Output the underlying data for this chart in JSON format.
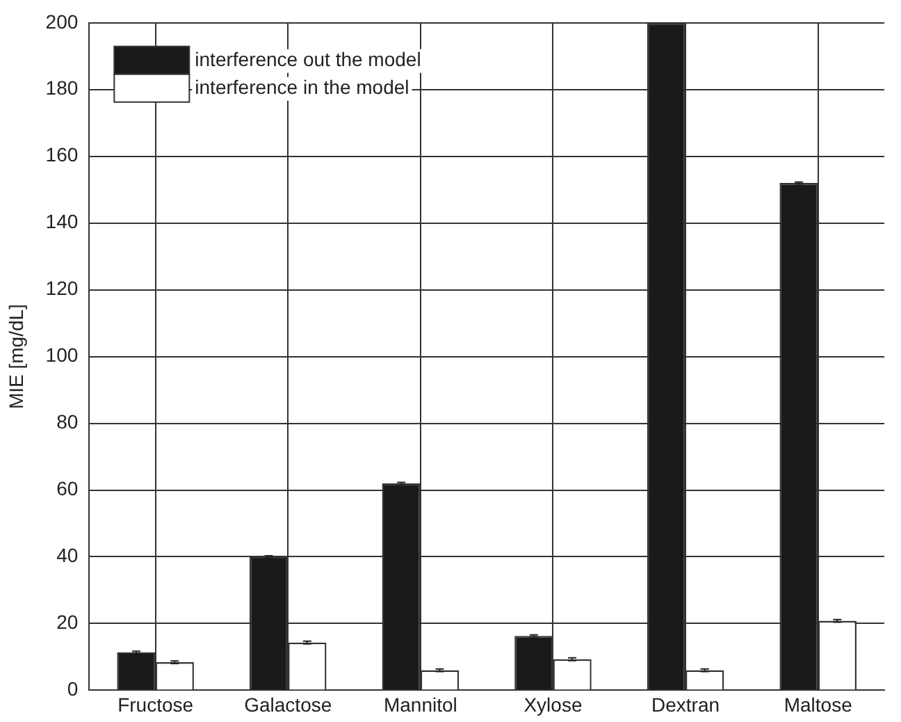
{
  "chart_data": {
    "type": "bar",
    "ylabel": "MIE [mg/dL]",
    "categories": [
      "Fructose",
      "Galactose",
      "Mannitol",
      "Xylose",
      "Dextran",
      "Maltose"
    ],
    "series": [
      {
        "name": "interference out the model",
        "color": "#1a1a1a",
        "values": [
          11.4,
          40,
          62,
          16.3,
          200,
          152
        ],
        "errors": [
          0.3,
          0.3,
          0.3,
          0.3,
          null,
          0.3
        ]
      },
      {
        "name": "interference in the model",
        "color": "#ffffff",
        "values": [
          8.4,
          14.3,
          6,
          9.3,
          6,
          20.8
        ],
        "errors": [
          0.4,
          0.4,
          0.4,
          0.4,
          0.4,
          0.4
        ]
      }
    ],
    "ylim": [
      0,
      200
    ],
    "yticks": [
      0,
      20,
      40,
      60,
      80,
      100,
      120,
      140,
      160,
      180,
      200
    ],
    "grid": true,
    "legend": "top left"
  }
}
